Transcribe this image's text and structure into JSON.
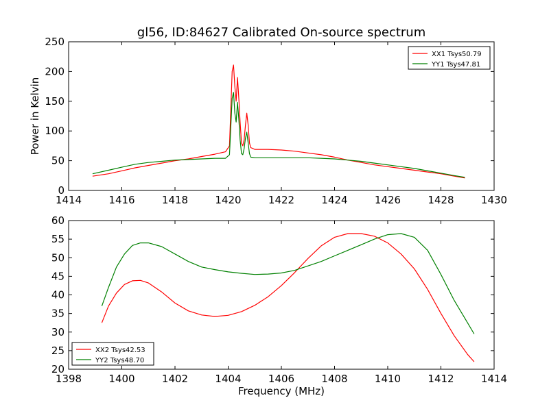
{
  "figure": {
    "title": "gl56, ID:84627 Calibrated On-source spectrum",
    "xlabel_bottom": "Frequency (MHz)"
  },
  "chart_data": [
    {
      "type": "line",
      "ylabel": "Power in Kelvin",
      "xlim": [
        1414,
        1430
      ],
      "ylim": [
        0,
        250
      ],
      "xticks": [
        "1414",
        "1416",
        "1418",
        "1420",
        "1422",
        "1424",
        "1426",
        "1428",
        "1430"
      ],
      "yticks": [
        "0",
        "50",
        "100",
        "150",
        "200",
        "250"
      ],
      "legend": "top-right",
      "series": [
        {
          "name": "XX1 Tsys50.79",
          "color": "#ff0000",
          "x": [
            1414.9,
            1415.5,
            1416,
            1416.5,
            1417,
            1417.5,
            1418,
            1418.5,
            1419,
            1419.5,
            1419.9,
            1420.05,
            1420.15,
            1420.2,
            1420.25,
            1420.3,
            1420.35,
            1420.4,
            1420.45,
            1420.5,
            1420.55,
            1420.6,
            1420.65,
            1420.7,
            1420.75,
            1420.8,
            1420.85,
            1421,
            1421.5,
            1422,
            1422.5,
            1423,
            1423.5,
            1424,
            1424.5,
            1425,
            1425.5,
            1426,
            1426.5,
            1427,
            1427.5,
            1428,
            1428.5,
            1428.9
          ],
          "y": [
            24,
            28,
            33,
            38,
            42,
            46,
            50,
            53,
            57,
            61,
            65,
            75,
            200,
            211,
            175,
            150,
            190,
            155,
            115,
            80,
            75,
            85,
            110,
            130,
            110,
            80,
            72,
            69,
            69,
            68,
            66,
            63,
            60,
            56,
            51,
            47,
            43,
            40,
            37,
            34,
            31,
            28,
            24,
            21
          ]
        },
        {
          "name": "YY1 Tsys47.81",
          "color": "#008000",
          "x": [
            1414.9,
            1415.5,
            1416,
            1416.5,
            1417,
            1417.5,
            1418,
            1418.5,
            1419,
            1419.5,
            1419.9,
            1420.05,
            1420.15,
            1420.2,
            1420.25,
            1420.3,
            1420.35,
            1420.4,
            1420.45,
            1420.5,
            1420.55,
            1420.6,
            1420.65,
            1420.7,
            1420.75,
            1420.8,
            1420.85,
            1421,
            1421.5,
            1422,
            1422.5,
            1423,
            1423.5,
            1424,
            1424.5,
            1425,
            1425.5,
            1426,
            1426.5,
            1427,
            1427.5,
            1428,
            1428.5,
            1428.9
          ],
          "y": [
            28,
            34,
            39,
            44,
            47,
            49,
            51,
            52,
            53,
            54,
            54,
            60,
            155,
            165,
            130,
            115,
            148,
            120,
            85,
            62,
            60,
            70,
            88,
            98,
            80,
            62,
            56,
            55,
            55,
            55,
            55,
            55,
            54,
            53,
            51,
            49,
            46,
            43,
            40,
            37,
            33,
            29,
            25,
            22
          ]
        }
      ]
    },
    {
      "type": "line",
      "xlabel": "Frequency (MHz)",
      "xlim": [
        1398,
        1414
      ],
      "ylim": [
        20,
        60
      ],
      "xticks": [
        "1398",
        "1400",
        "1402",
        "1404",
        "1406",
        "1408",
        "1410",
        "1412",
        "1414"
      ],
      "yticks": [
        "20",
        "25",
        "30",
        "35",
        "40",
        "45",
        "50",
        "55",
        "60"
      ],
      "legend": "bottom-left",
      "series": [
        {
          "name": "XX2 Tsys42.53",
          "color": "#ff0000",
          "x": [
            1399.25,
            1399.5,
            1399.8,
            1400.1,
            1400.4,
            1400.7,
            1401.0,
            1401.5,
            1402.0,
            1402.5,
            1403.0,
            1403.5,
            1404.0,
            1404.5,
            1405.0,
            1405.5,
            1406.0,
            1406.5,
            1407.0,
            1407.5,
            1408.0,
            1408.5,
            1409.0,
            1409.5,
            1410.0,
            1410.5,
            1411.0,
            1411.5,
            1412.0,
            1412.5,
            1413.0,
            1413.25
          ],
          "y": [
            32.5,
            37,
            40.5,
            42.8,
            43.8,
            43.9,
            43.2,
            40.8,
            37.8,
            35.7,
            34.6,
            34.2,
            34.5,
            35.5,
            37.2,
            39.5,
            42.5,
            46.0,
            49.8,
            53.2,
            55.5,
            56.5,
            56.5,
            55.8,
            54.0,
            51.0,
            47.0,
            41.5,
            35.0,
            29.0,
            24.0,
            22.0
          ]
        },
        {
          "name": "YY2 Tsys48.70",
          "color": "#008000",
          "x": [
            1399.25,
            1399.5,
            1399.8,
            1400.1,
            1400.4,
            1400.7,
            1401.0,
            1401.5,
            1402.0,
            1402.5,
            1403.0,
            1403.5,
            1404.0,
            1404.5,
            1405.0,
            1405.5,
            1406.0,
            1406.5,
            1407.0,
            1407.5,
            1408.0,
            1408.5,
            1409.0,
            1409.5,
            1410.0,
            1410.5,
            1411.0,
            1411.5,
            1412.0,
            1412.5,
            1413.0,
            1413.25
          ],
          "y": [
            37,
            42,
            47.5,
            51.0,
            53.3,
            54.0,
            54.0,
            53.0,
            51.0,
            49.0,
            47.5,
            46.8,
            46.2,
            45.8,
            45.5,
            45.6,
            45.9,
            46.6,
            47.8,
            49.0,
            50.5,
            52.0,
            53.5,
            55.0,
            56.2,
            56.5,
            55.5,
            52.0,
            45.5,
            38.5,
            32.5,
            29.5
          ]
        }
      ]
    }
  ]
}
